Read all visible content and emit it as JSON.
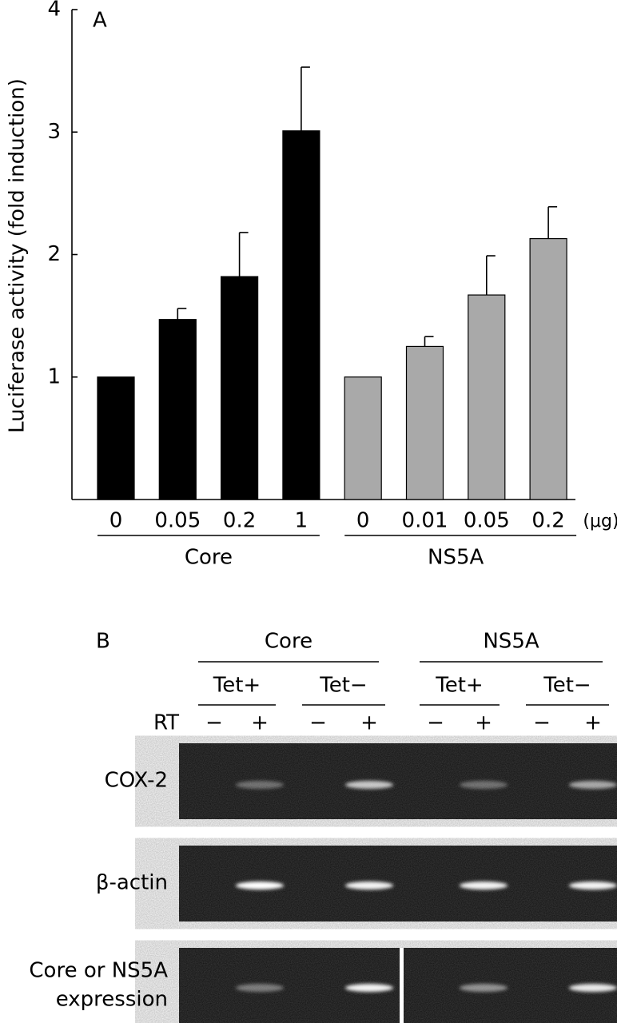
{
  "chart_data": {
    "type": "bar",
    "annotation": "A",
    "ylabel": "Luciferase activity (fold induction)",
    "xlabel": "(μg)",
    "categories": [
      "0",
      "0.05",
      "0.2",
      "1",
      "0",
      "0.01",
      "0.05",
      "0.2"
    ],
    "series": [
      {
        "name": "Core",
        "color": "#000000",
        "values": [
          1,
          1.47,
          1.82,
          3.01,
          null,
          null,
          null,
          null
        ],
        "errors": [
          null,
          0.09,
          0.36,
          0.52,
          null,
          null,
          null,
          null
        ]
      },
      {
        "name": "NS5A",
        "color": "#a9a9a9",
        "values": [
          null,
          null,
          null,
          null,
          1,
          1.25,
          1.67,
          2.13
        ],
        "errors": [
          null,
          null,
          null,
          null,
          null,
          0.08,
          0.32,
          0.26
        ]
      }
    ],
    "ylim": [
      0,
      4
    ],
    "yticks": [
      1,
      2,
      3,
      4
    ],
    "grid": false
  },
  "panel_b": {
    "label": "B",
    "groups": [
      {
        "name": "Core",
        "conditions": [
          "Tet+",
          "Tet−"
        ]
      },
      {
        "name": "NS5A",
        "conditions": [
          "Tet+",
          "Tet−"
        ]
      }
    ],
    "rt_label": "RT",
    "rt_signs": [
      "−",
      "+",
      "−",
      "+",
      "−",
      "+",
      "−",
      "+"
    ],
    "rows": [
      [
        "COX-2"
      ],
      [
        "β-actin"
      ],
      [
        "Core or NS5A",
        "expression"
      ]
    ]
  }
}
